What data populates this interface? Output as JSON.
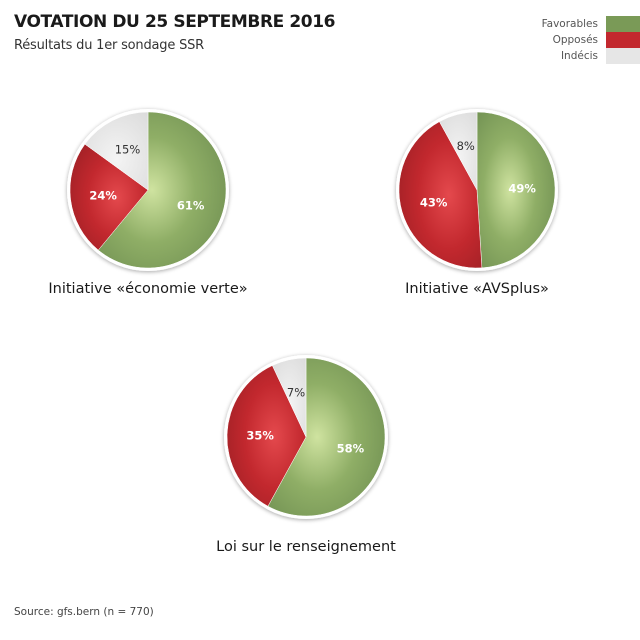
{
  "header": {
    "title": "VOTATION DU 25 SEPTEMBRE 2016",
    "subtitle": "Résultats du 1er sondage SSR"
  },
  "legend": [
    {
      "label": "Favorables",
      "color": "#7a9a57"
    },
    {
      "label": "Opposés",
      "color": "#c2282e"
    },
    {
      "label": "Indécis",
      "color": "#e6e6e6"
    }
  ],
  "source": "Source: gfs.bern (n = 770)",
  "chart_data": [
    {
      "type": "pie",
      "title": "Initiative «économie verte»",
      "categories": [
        "Favorables",
        "Opposés",
        "Indécis"
      ],
      "values": [
        61,
        24,
        15
      ],
      "labels": [
        "61%",
        "24%",
        "15%"
      ]
    },
    {
      "type": "pie",
      "title": "Initiative «AVSplus»",
      "categories": [
        "Favorables",
        "Opposés",
        "Indécis"
      ],
      "values": [
        49,
        43,
        8
      ],
      "labels": [
        "49%",
        "43%",
        "8%"
      ]
    },
    {
      "type": "pie",
      "title": "Loi sur le renseignement",
      "categories": [
        "Favorables",
        "Opposés",
        "Indécis"
      ],
      "values": [
        58,
        35,
        7
      ],
      "labels": [
        "58%",
        "35%",
        "7%"
      ]
    }
  ]
}
